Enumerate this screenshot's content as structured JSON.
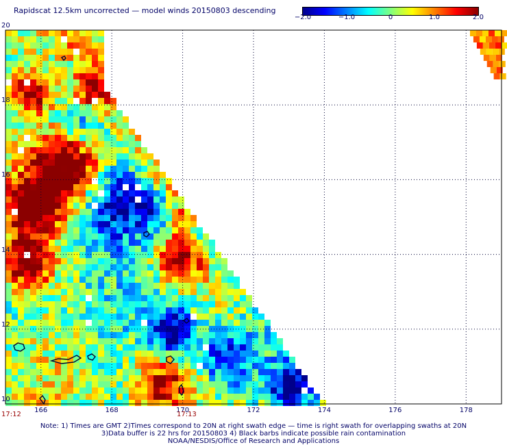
{
  "title": "Rapidscat 12.5km uncorrected — model winds 20150803 descending",
  "colorbar": {
    "ticks": [
      "−2.0",
      "−1.0",
      "0",
      "1.0",
      "2.0"
    ],
    "tick_values": [
      -2.0,
      -1.0,
      0,
      1.0,
      2.0
    ],
    "range": [
      -2.0,
      2.0
    ],
    "colors": [
      "#00008b",
      "#0000ff",
      "#0080ff",
      "#00ffff",
      "#80ff80",
      "#ffff00",
      "#ff8000",
      "#ff0000",
      "#8b0000"
    ]
  },
  "map": {
    "lat_labels": [
      "20",
      "18",
      "16",
      "14",
      "12",
      "10"
    ],
    "lon_labels": [
      "166",
      "168",
      "170",
      "172",
      "174",
      "176",
      "178"
    ],
    "lat_range": [
      10,
      20
    ],
    "lon_range": [
      165,
      179
    ],
    "times": [
      "17:12",
      "17:13"
    ],
    "grid": true,
    "land_outlines": true
  },
  "note": {
    "line1": "Note: 1) Times are GMT 2)Times correspond to 20N at right swath edge — time is right swath for overlapping swaths at 20N",
    "line2": "3)Data buffer is 22 hrs for 20150803 4) Black barbs indicate possible rain contamination",
    "line3": "NOAA/NESDIS/Office of Research and Applications"
  }
}
